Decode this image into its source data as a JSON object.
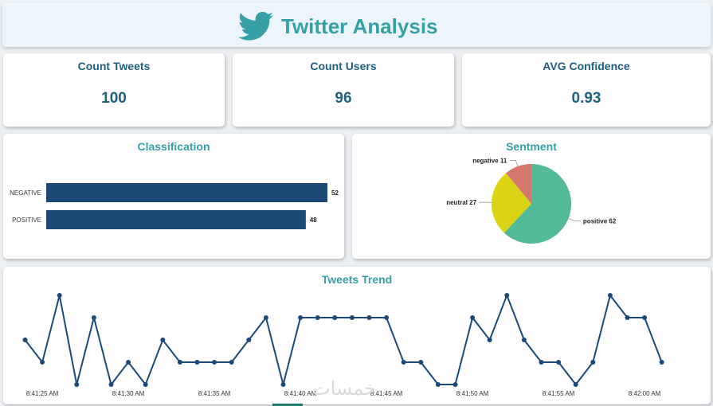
{
  "header": {
    "title": "Twitter Analysis",
    "icon": "twitter-bird-icon",
    "accent": "#35a0a5"
  },
  "kpis": [
    {
      "label": "Count Tweets",
      "value": "100"
    },
    {
      "label": "Count Users",
      "value": "96"
    },
    {
      "label": "AVG Confidence",
      "value": "0.93"
    }
  ],
  "watermark": "خمسات",
  "chart_data": [
    {
      "type": "bar",
      "orientation": "horizontal",
      "title": "Classification",
      "categories": [
        "NEGATIVE",
        "POSITIVE"
      ],
      "values": [
        52,
        48
      ],
      "color": "#1b4a78"
    },
    {
      "type": "pie",
      "title": "Sentment",
      "labels": [
        "positive",
        "neutral",
        "negative"
      ],
      "values": [
        62,
        27,
        11
      ],
      "colors": [
        "#52b999",
        "#dbd414",
        "#d4786e"
      ]
    },
    {
      "type": "line",
      "title": "Tweets Trend",
      "color": "#1b4a78",
      "x_tick_labels": [
        "8:41:25 AM",
        "8:41:30 AM",
        "8:41:35 AM",
        "8:41:40 AM",
        "8:41:45 AM",
        "8:41:50 AM",
        "8:41:55 AM",
        "8:42:00 AM"
      ],
      "x_start": "8:41:24 AM",
      "x_step_seconds": 1,
      "values": [
        2,
        1,
        4,
        0,
        3,
        0,
        1,
        0,
        2,
        1,
        1,
        1,
        1,
        2,
        3,
        0,
        3,
        3,
        3,
        3,
        3,
        3,
        1,
        1,
        0,
        0,
        3,
        2,
        4,
        2,
        1,
        1,
        0,
        1,
        4,
        3,
        3,
        1
      ],
      "ylim": [
        0,
        4
      ]
    }
  ]
}
